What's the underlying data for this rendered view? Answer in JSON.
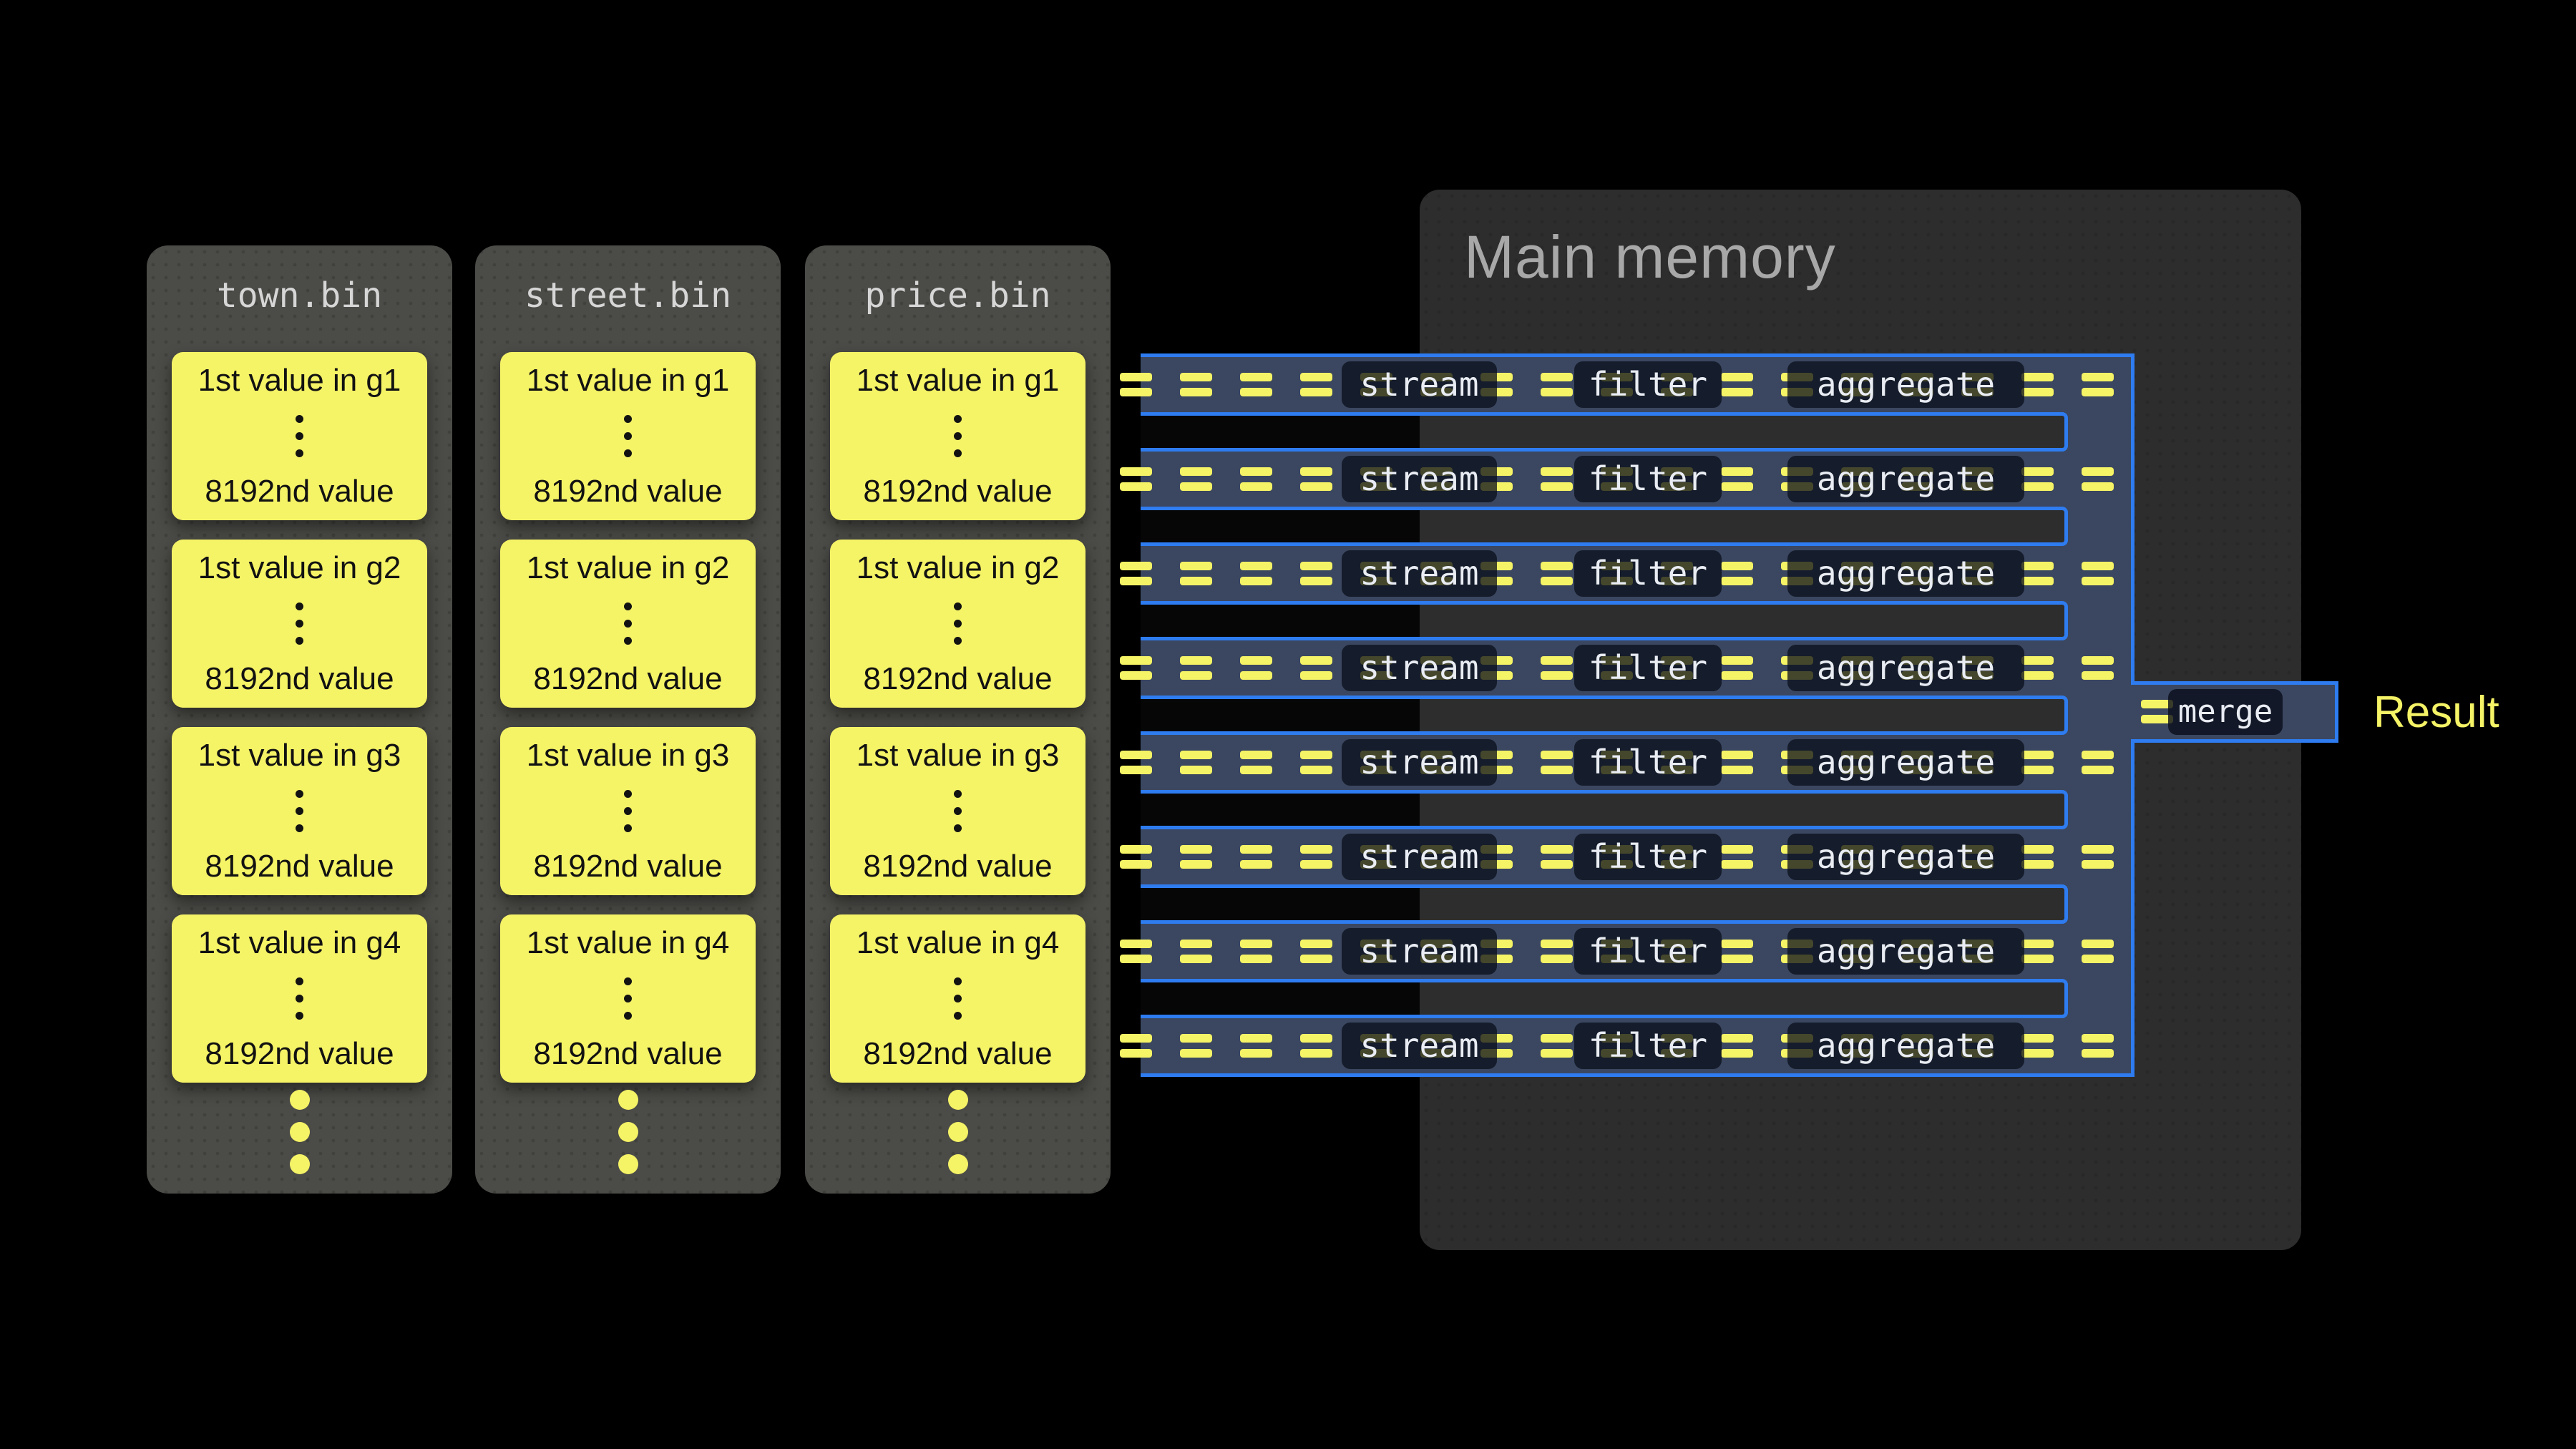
{
  "files": [
    {
      "name": "town.bin",
      "groups": [
        {
          "first": "1st value in g1",
          "last": "8192nd value"
        },
        {
          "first": "1st value in g2",
          "last": "8192nd value"
        },
        {
          "first": "1st value in g3",
          "last": "8192nd value"
        },
        {
          "first": "1st value in g4",
          "last": "8192nd value"
        }
      ]
    },
    {
      "name": "street.bin",
      "groups": [
        {
          "first": "1st value in g1",
          "last": "8192nd value"
        },
        {
          "first": "1st value in g2",
          "last": "8192nd value"
        },
        {
          "first": "1st value in g3",
          "last": "8192nd value"
        },
        {
          "first": "1st value in g4",
          "last": "8192nd value"
        }
      ]
    },
    {
      "name": "price.bin",
      "groups": [
        {
          "first": "1st value in g1",
          "last": "8192nd value"
        },
        {
          "first": "1st value in g2",
          "last": "8192nd value"
        },
        {
          "first": "1st value in g3",
          "last": "8192nd value"
        },
        {
          "first": "1st value in g4",
          "last": "8192nd value"
        }
      ]
    }
  ],
  "memory": {
    "title": "Main memory"
  },
  "pipeline": {
    "row_count": 8,
    "stages": [
      "stream",
      "filter",
      "aggregate"
    ],
    "merge_label": "merge",
    "result_label": "Result"
  },
  "colors": {
    "background": "#000000",
    "file_gray": "#4B4B47",
    "file_text": "#D6D6D6",
    "panel_gray": "#2D2D2D",
    "memory_title": "#A8A8A8",
    "yellow": "#F5F366",
    "navy": "#3B4760",
    "blue": "#2E7CF0",
    "stage_text": "#E9EDF3",
    "value_text": "#121212"
  }
}
